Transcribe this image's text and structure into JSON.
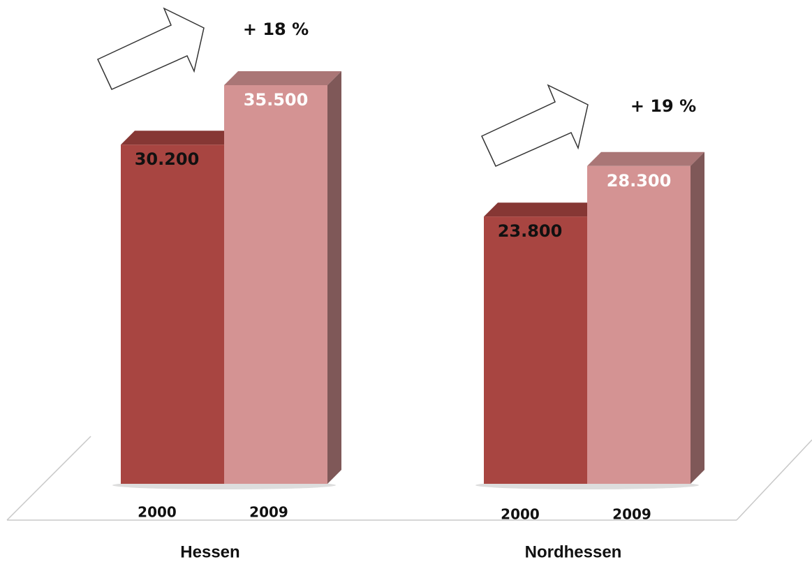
{
  "chart_data": {
    "type": "bar",
    "categories": [
      "Hessen",
      "Nordhessen"
    ],
    "series": [
      {
        "name": "2000",
        "color": "#a84541",
        "values": [
          30200,
          23800
        ],
        "value_labels": [
          "30.200",
          "23.800"
        ]
      },
      {
        "name": "2009",
        "color": "#d49393",
        "values": [
          35500,
          28300
        ],
        "value_labels": [
          "35.500",
          "28.300"
        ]
      }
    ],
    "annotations": [
      "+ 18 %",
      "+ 19 %"
    ]
  }
}
